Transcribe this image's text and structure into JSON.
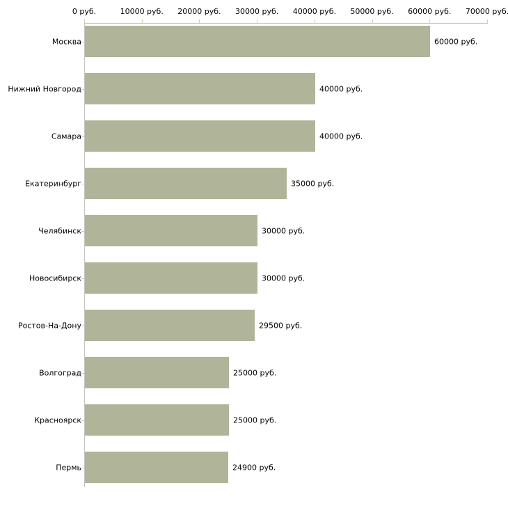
{
  "chart_data": {
    "type": "bar",
    "orientation": "horizontal",
    "title": "",
    "xlabel": "",
    "ylabel": "",
    "grid": false,
    "legend": null,
    "categories": [
      "Москва",
      "Нижний Новгород",
      "Самара",
      "Екатеринбург",
      "Челябинск",
      "Новосибирск",
      "Ростов-На-Дону",
      "Волгоград",
      "Красноярск",
      "Пермь"
    ],
    "values": [
      60000,
      40000,
      40000,
      35000,
      30000,
      30000,
      29500,
      25000,
      25000,
      24900
    ],
    "value_labels": [
      "60000 руб.",
      "40000 руб.",
      "40000 руб.",
      "35000 руб.",
      "30000 руб.",
      "30000 руб.",
      "29500 руб.",
      "25000 руб.",
      "25000 руб.",
      "24900 руб."
    ],
    "x_axis": {
      "position": "top",
      "range": [
        0,
        70000
      ],
      "ticks": [
        0,
        10000,
        20000,
        30000,
        40000,
        50000,
        60000,
        70000
      ],
      "tick_labels": [
        "0 руб.",
        "10000 руб.",
        "20000 руб.",
        "30000 руб.",
        "40000 руб.",
        "50000 руб.",
        "60000 руб.",
        "70000 руб."
      ]
    },
    "colors": {
      "bar": "#b0b499",
      "axis_line": "#c3c3c3",
      "tick": "#ccd0a4",
      "text": "#000000",
      "background": "#ffffff"
    }
  }
}
